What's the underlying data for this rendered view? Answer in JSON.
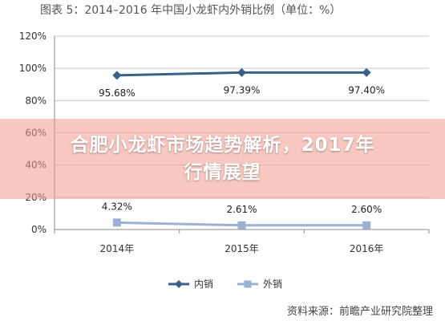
{
  "chart_data": {
    "type": "line",
    "title": "图表 5：2014–2016 年中国小龙虾内外销比例（单位：%）",
    "categories": [
      "2014年",
      "2015年",
      "2016年"
    ],
    "y_ticks": [
      "0%",
      "20%",
      "40%",
      "60%",
      "80%",
      "100%",
      "120%"
    ],
    "ylim": [
      0,
      120
    ],
    "grid": true,
    "legend_position": "bottom",
    "series": [
      {
        "name": "内销",
        "color": "#3a5f8a",
        "marker": "diamond",
        "values": [
          95.68,
          97.39,
          97.4
        ],
        "labels": [
          "95.68%",
          "97.39%",
          "97.40%"
        ]
      },
      {
        "name": "外销",
        "color": "#9bb1d4",
        "marker": "square",
        "values": [
          4.32,
          2.61,
          2.6
        ],
        "labels": [
          "4.32%",
          "2.61%",
          "2.60%"
        ]
      }
    ]
  },
  "source": "资料来源：前瞻产业研究院整理",
  "overlay": {
    "line1": "合肥小龙虾市场趋势解析，2017年",
    "line2": "行情展望",
    "color": "#ee9a8a"
  }
}
